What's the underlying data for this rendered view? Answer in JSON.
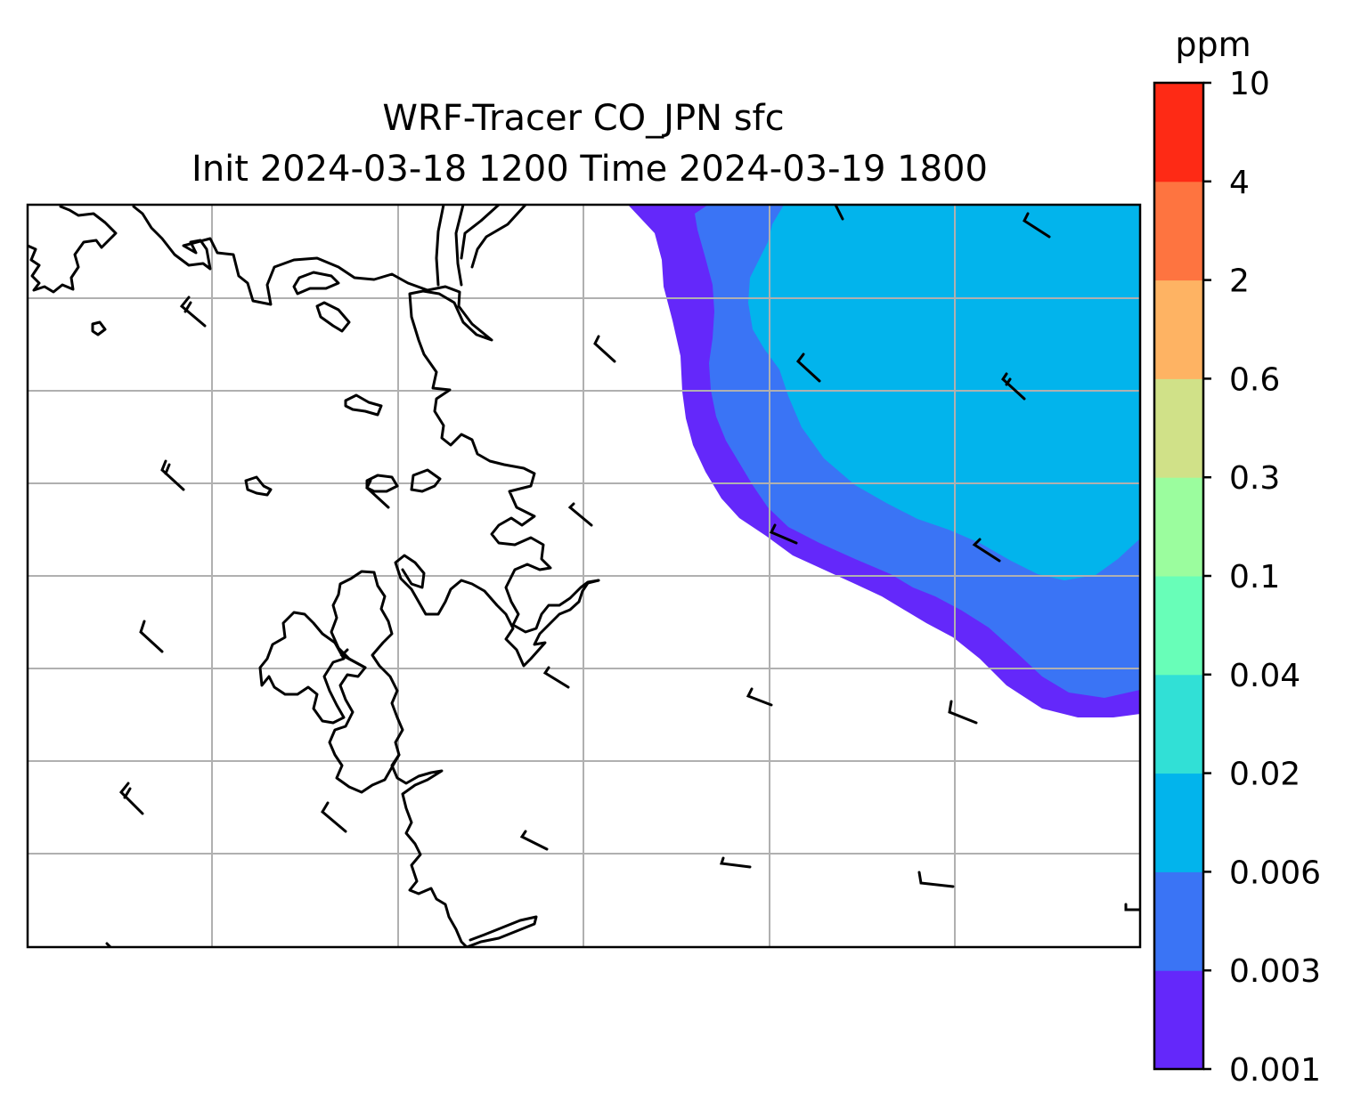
{
  "title": {
    "line1": "WRF-Tracer CO_JPN sfc",
    "line2": "Init 2024-03-18 1200 Time 2024-03-19 1800"
  },
  "colorbar": {
    "unit": "ppm",
    "levels": [
      "0.001",
      "0.003",
      "0.006",
      "0.02",
      "0.04",
      "0.1",
      "0.3",
      "0.6",
      "2",
      "4",
      "10"
    ],
    "colors": [
      "#6428fa",
      "#3a74f5",
      "#02b4ec",
      "#31e0d6",
      "#68feb8",
      "#9bfd9e",
      "#d0e188",
      "#feb363",
      "#fe7440",
      "#fe2a15"
    ]
  },
  "map": {
    "gridline_color": "#b0b0b0",
    "coastline_color": "#000000",
    "wind_barb_color": "#000000",
    "plume_levels_present": [
      "0.001",
      "0.003",
      "0.006"
    ]
  }
}
